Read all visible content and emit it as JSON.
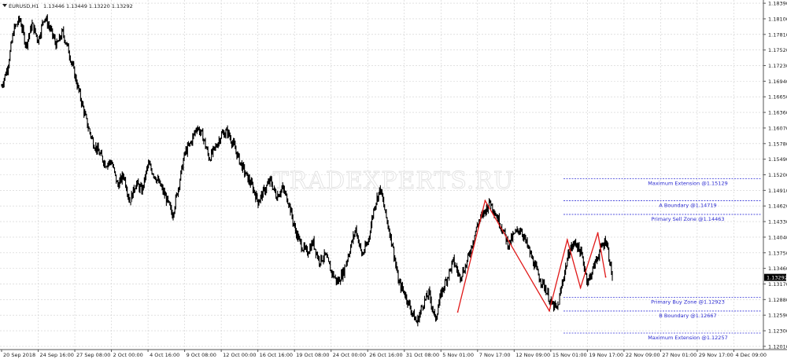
{
  "header": {
    "symbol": "EURUSD,H1",
    "ohlc": "1.13446 1.13449 1.13220 1.13292"
  },
  "watermark": "TRADEXPERTS.RU",
  "chart_data": {
    "type": "line",
    "title": "",
    "xlabel": "",
    "ylabel": "",
    "ylim": [
      1.1195,
      1.1845
    ],
    "grid": true,
    "current_price": 1.13292,
    "y_ticks": [
      "1.18390",
      "1.18100",
      "1.17810",
      "1.17520",
      "1.17230",
      "1.16940",
      "1.16650",
      "1.16360",
      "1.16070",
      "1.15780",
      "1.15490",
      "1.15200",
      "1.14910",
      "1.14620",
      "1.14330",
      "1.14040",
      "1.13750",
      "1.13460",
      "1.13170",
      "1.12880",
      "1.12590",
      "1.12300",
      "1.12010"
    ],
    "x_ticks": [
      "20 Sep 2018",
      "24 Sep 16:00",
      "27 Sep 08:00",
      "2 Oct 00:00",
      "4 Oct 16:00",
      "9 Oct 08:00",
      "12 Oct 00:00",
      "16 Oct 16:00",
      "19 Oct 08:00",
      "24 Oct 00:00",
      "26 Oct 16:00",
      "31 Oct 08:00",
      "5 Nov 01:00",
      "7 Nov 17:00",
      "12 Nov 09:00",
      "15 Nov 01:00",
      "19 Nov 17:00",
      "22 Nov 09:00",
      "27 Nov 01:00",
      "29 Nov 17:00",
      "4 Dec 09:00"
    ],
    "price_path": [
      1.1685,
      1.172,
      1.179,
      1.181,
      1.176,
      1.18,
      1.177,
      1.1815,
      1.179,
      1.176,
      1.1785,
      1.175,
      1.1705,
      1.166,
      1.1615,
      1.158,
      1.156,
      1.154,
      1.1545,
      1.15,
      1.152,
      1.147,
      1.1505,
      1.149,
      1.154,
      1.152,
      1.15,
      1.1475,
      1.1445,
      1.15,
      1.156,
      1.158,
      1.161,
      1.159,
      1.155,
      1.157,
      1.1595,
      1.16,
      1.1575,
      1.1545,
      1.152,
      1.15,
      1.147,
      1.149,
      1.151,
      1.148,
      1.1495,
      1.147,
      1.142,
      1.139,
      1.1375,
      1.1395,
      1.136,
      1.137,
      1.134,
      1.132,
      1.134,
      1.138,
      1.142,
      1.137,
      1.1395,
      1.146,
      1.1495,
      1.144,
      1.139,
      1.132,
      1.13,
      1.127,
      1.1245,
      1.128,
      1.13,
      1.125,
      1.13,
      1.133,
      1.136,
      1.133,
      1.135,
      1.139,
      1.143,
      1.145,
      1.147,
      1.1445,
      1.142,
      1.139,
      1.141,
      1.142,
      1.139,
      1.136,
      1.133,
      1.131,
      1.128,
      1.127,
      1.133,
      1.138,
      1.1395,
      1.137,
      1.132,
      1.135,
      1.138,
      1.14,
      1.133
    ],
    "pattern": {
      "color": "#e01818",
      "points": [
        [
          0.727,
          1.1265
        ],
        [
          0.7705,
          1.1472
        ],
        [
          0.8725,
          1.1267
        ],
        [
          0.901,
          1.1399
        ],
        [
          0.922,
          1.131
        ],
        [
          0.9495,
          1.1412
        ],
        [
          0.962,
          1.133
        ]
      ]
    },
    "levels": [
      {
        "label": "Maximum Extension @1.15129",
        "value": 1.15129
      },
      {
        "label": "A Boundary @1.14719",
        "value": 1.14719
      },
      {
        "label": "Primary Sell Zone @1.14463",
        "value": 1.14463
      },
      {
        "label": "Primary Buy Zone @1.12923",
        "value": 1.12923
      },
      {
        "label": "B Boundary @1.12667",
        "value": 1.12667
      },
      {
        "label": "Maximum Extension @1.12257",
        "value": 1.12257
      }
    ]
  }
}
